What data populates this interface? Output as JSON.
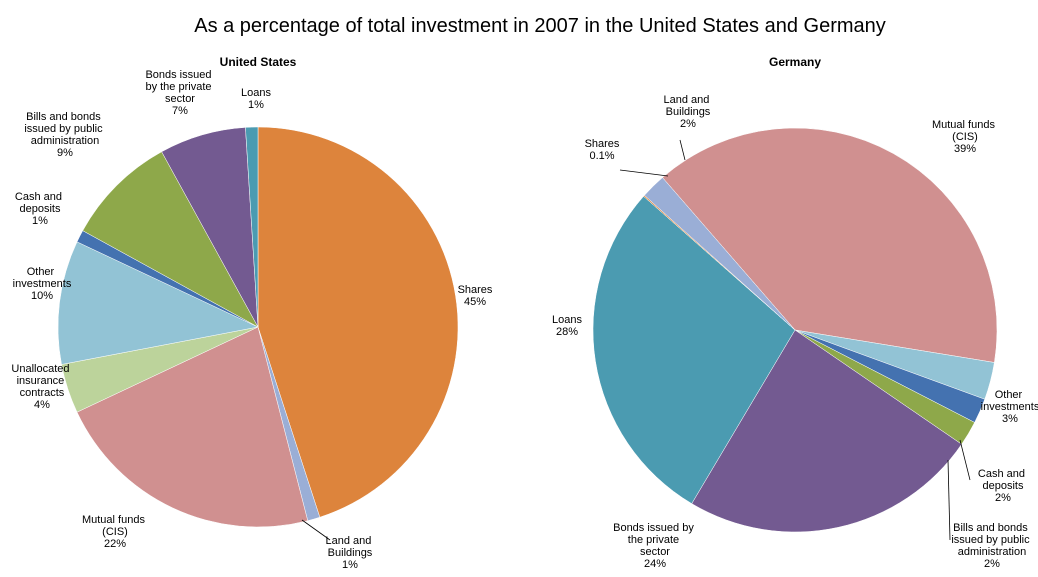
{
  "title": "As a percentage of total investment in 2007 in the United States and Germany",
  "chart_data": [
    {
      "type": "pie",
      "title": "United States",
      "categories": [
        "Shares",
        "Land and Buildings",
        "Mutual funds (CIS)",
        "Unallocated insurance contracts",
        "Other investments",
        "Cash and deposits",
        "Bills and bonds issued by public administration",
        "Bonds issued by the private sector",
        "Loans"
      ],
      "values": [
        45,
        1,
        22,
        4,
        10,
        1,
        9,
        7,
        1
      ],
      "value_labels": [
        "45%",
        "1%",
        "22%",
        "4%",
        "10%",
        "1%",
        "9%",
        "7%",
        "1%"
      ],
      "colors": [
        "#dd843c",
        "#9aaed6",
        "#d09090",
        "#bcd39b",
        "#92c3d5",
        "#4472b0",
        "#8ea84a",
        "#735a91",
        "#4b9bb1"
      ]
    },
    {
      "type": "pie",
      "title": "Germany",
      "categories": [
        "Mutual funds (CIS)",
        "Other investments",
        "Cash and deposits",
        "Bills and bonds issued by public administration",
        "Bonds issued by the private sector",
        "Loans",
        "Shares",
        "Land and Buildings"
      ],
      "values": [
        39,
        3,
        2,
        2,
        24,
        28,
        0.1,
        2
      ],
      "value_labels": [
        "39%",
        "3%",
        "2%",
        "2%",
        "24%",
        "28%",
        "0.1%",
        "2%"
      ],
      "colors": [
        "#d09090",
        "#92c3d5",
        "#4472b0",
        "#8ea84a",
        "#735a91",
        "#4b9bb1",
        "#dd843c",
        "#9aaed6"
      ]
    }
  ]
}
